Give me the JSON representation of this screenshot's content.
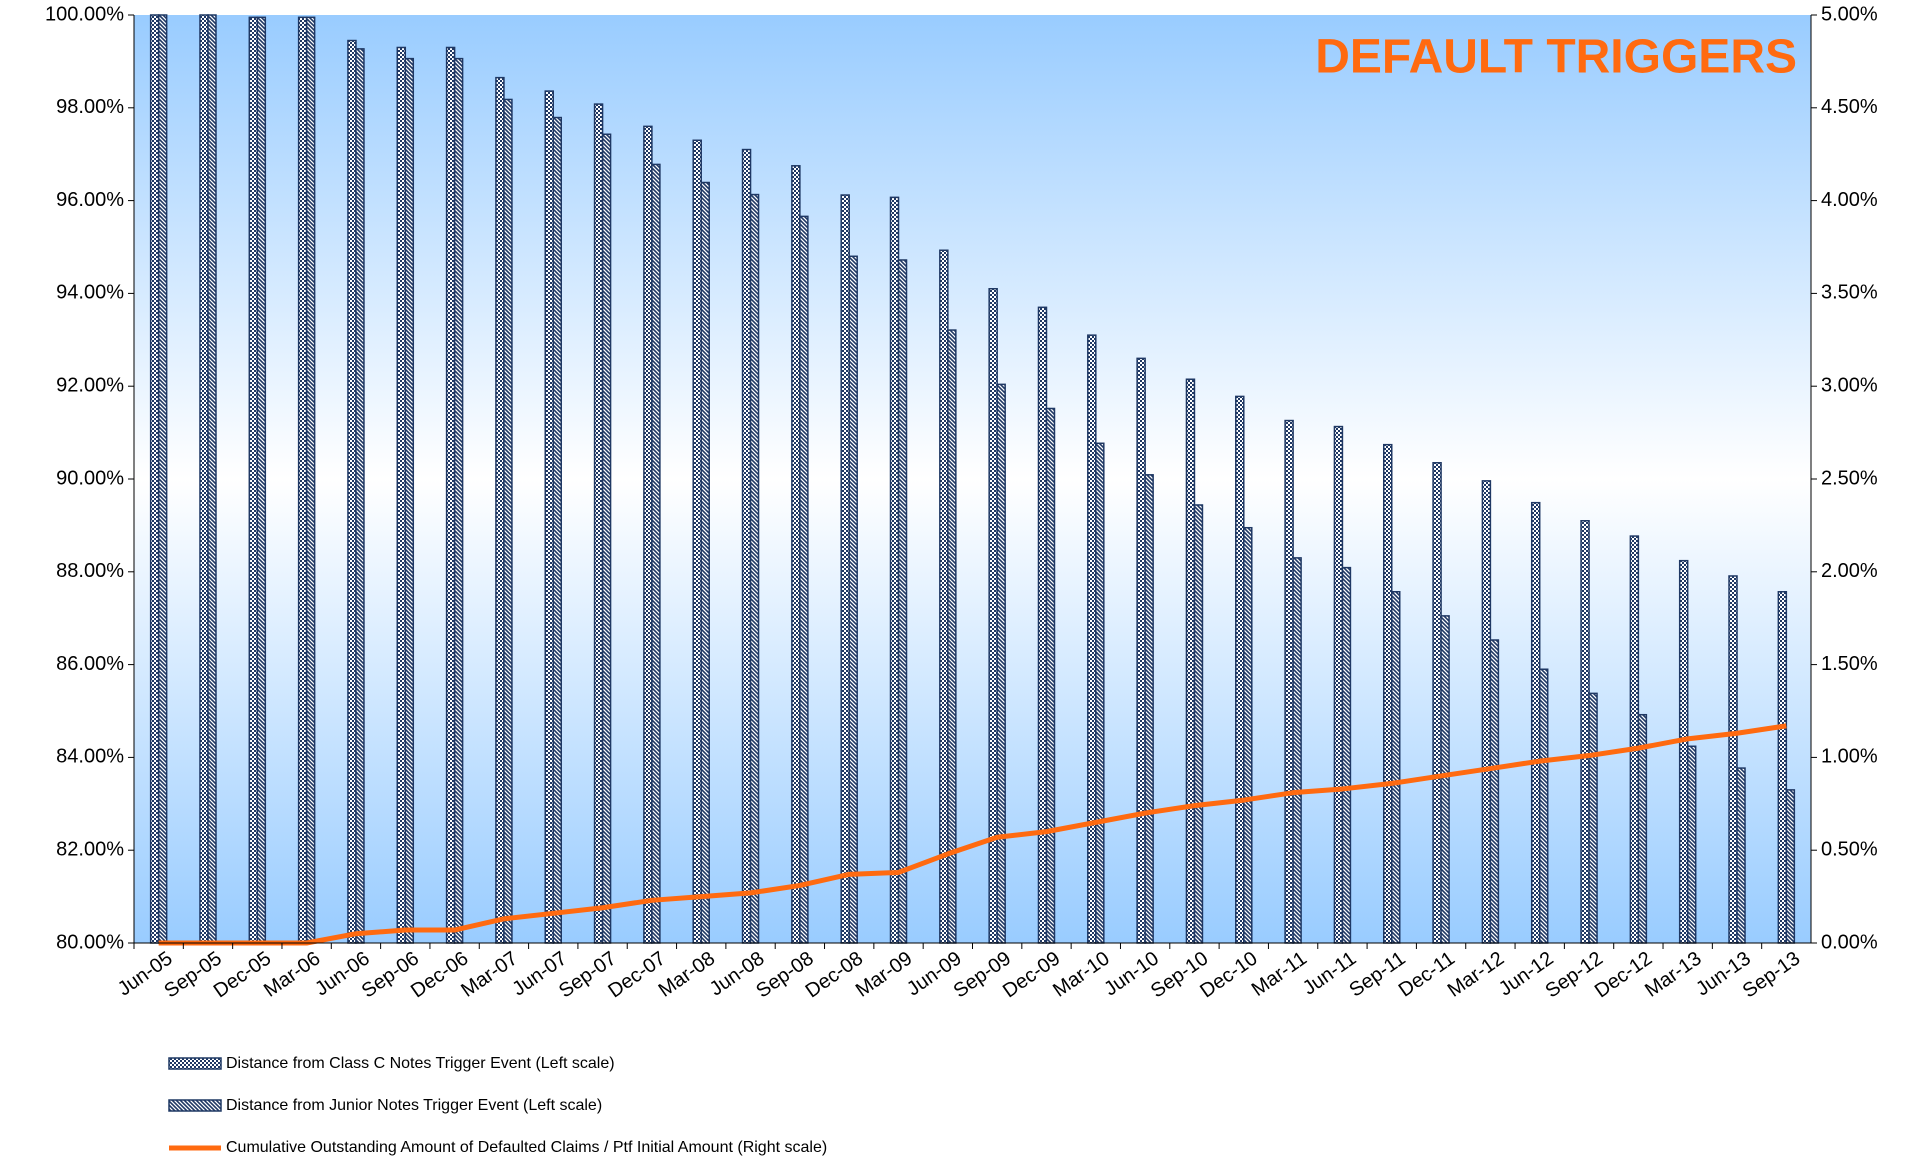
{
  "chart_data": {
    "type": "bar_line",
    "title": "DEFAULT TRIGGERS",
    "categories": [
      "Jun-05",
      "Sep-05",
      "Dec-05",
      "Mar-06",
      "Jun-06",
      "Sep-06",
      "Dec-06",
      "Mar-07",
      "Jun-07",
      "Sep-07",
      "Dec-07",
      "Mar-08",
      "Jun-08",
      "Sep-08",
      "Dec-08",
      "Mar-09",
      "Jun-09",
      "Sep-09",
      "Dec-09",
      "Mar-10",
      "Jun-10",
      "Sep-10",
      "Dec-10",
      "Mar-11",
      "Jun-11",
      "Sep-11",
      "Dec-11",
      "Mar-12",
      "Jun-12",
      "Sep-12",
      "Dec-12",
      "Mar-13",
      "Jun-13",
      "Sep-13"
    ],
    "series": [
      {
        "name": "Distance from Class C Notes Trigger Event (Left scale)",
        "type": "bar",
        "color": "#1f3864",
        "pattern": "dots",
        "values": [
          100,
          100,
          99.95,
          99.95,
          99.45,
          99.3,
          99.3,
          98.65,
          98.36,
          98.08,
          97.6,
          97.3,
          97.1,
          96.75,
          96.12,
          96.07,
          94.93,
          94.1,
          93.7,
          93.1,
          92.6,
          92.15,
          91.78,
          91.26,
          91.13,
          90.74,
          90.35,
          89.96,
          89.49,
          89.1,
          88.77,
          88.24,
          87.91,
          87.57
        ]
      },
      {
        "name": "Distance from Junior Notes Trigger Event (Left scale)",
        "type": "bar",
        "color": "#1f3864",
        "pattern": "stripes",
        "values": [
          100,
          100,
          99.95,
          99.95,
          99.27,
          99.06,
          99.06,
          98.18,
          97.79,
          97.43,
          96.78,
          96.39,
          96.13,
          95.66,
          94.8,
          94.72,
          93.21,
          92.04,
          91.52,
          90.77,
          90.09,
          89.44,
          88.95,
          88.3,
          88.09,
          87.57,
          87.05,
          86.53,
          85.9,
          85.38,
          84.92,
          84.24,
          83.77,
          83.3
        ]
      },
      {
        "name": "Cumulative Outstanding Amount of Defaulted Claims / Ptf Initial Amount (Right scale)",
        "type": "line",
        "axis": "y2",
        "color": "#ff6a10",
        "values": [
          0,
          0,
          0,
          0,
          0.05,
          0.07,
          0.07,
          0.13,
          0.16,
          0.19,
          0.23,
          0.25,
          0.27,
          0.31,
          0.37,
          0.38,
          0.48,
          0.57,
          0.6,
          0.65,
          0.7,
          0.74,
          0.77,
          0.81,
          0.83,
          0.86,
          0.9,
          0.94,
          0.98,
          1.01,
          1.05,
          1.1,
          1.13,
          1.17
        ]
      }
    ],
    "ylim": [
      80,
      100
    ],
    "yticks": [
      {
        "value": 80,
        "label": "80.00%"
      },
      {
        "value": 82,
        "label": "82.00%"
      },
      {
        "value": 84,
        "label": "84.00%"
      },
      {
        "value": 86,
        "label": "86.00%"
      },
      {
        "value": 88,
        "label": "88.00%"
      },
      {
        "value": 90,
        "label": "90.00%"
      },
      {
        "value": 92,
        "label": "92.00%"
      },
      {
        "value": 94,
        "label": "94.00%"
      },
      {
        "value": 96,
        "label": "96.00%"
      },
      {
        "value": 98,
        "label": "98.00%"
      },
      {
        "value": 100,
        "label": "100.00%"
      }
    ],
    "y2lim": [
      0,
      5
    ],
    "y2ticks": [
      {
        "value": 0,
        "label": "0.00%"
      },
      {
        "value": 0.5,
        "label": "0.50%"
      },
      {
        "value": 1,
        "label": "1.00%"
      },
      {
        "value": 1.5,
        "label": "1.50%"
      },
      {
        "value": 2,
        "label": "2.00%"
      },
      {
        "value": 2.5,
        "label": "2.50%"
      },
      {
        "value": 3,
        "label": "3.00%"
      },
      {
        "value": 3.5,
        "label": "3.50%"
      },
      {
        "value": 4,
        "label": "4.00%"
      },
      {
        "value": 4.5,
        "label": "4.50%"
      },
      {
        "value": 5,
        "label": "5.00%"
      }
    ],
    "title_color": "#ff6a10",
    "legend": "bottom-left"
  }
}
